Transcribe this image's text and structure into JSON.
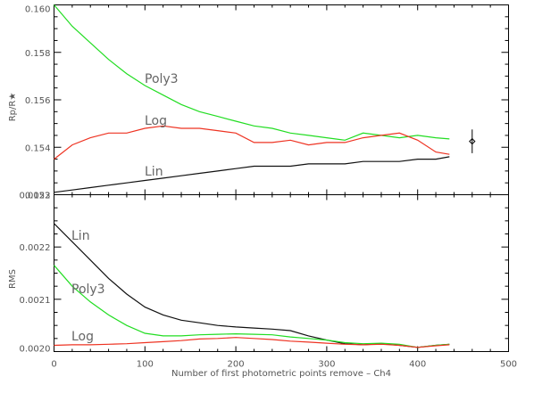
{
  "chart_data": [
    {
      "type": "line",
      "ylabel": "Rp/R★",
      "xlim": [
        0,
        500
      ],
      "ylim": [
        0.152,
        0.16
      ],
      "xticks": [
        0,
        100,
        200,
        300,
        400,
        500
      ],
      "yticks": [
        0.152,
        0.154,
        0.156,
        0.158,
        0.16
      ],
      "ytick_labels": [
        "0.152",
        "0.154",
        "0.156",
        "0.158",
        "0.160"
      ],
      "grid": false,
      "x": [
        0,
        20,
        40,
        60,
        80,
        100,
        120,
        140,
        160,
        180,
        200,
        220,
        240,
        260,
        280,
        300,
        320,
        340,
        360,
        380,
        400,
        420,
        435
      ],
      "series": [
        {
          "name": "Poly3",
          "color": "#22dd22",
          "values": [
            0.16,
            0.1591,
            0.1584,
            0.1577,
            0.1571,
            0.1566,
            0.1562,
            0.1558,
            0.1555,
            0.1553,
            0.1551,
            0.1549,
            0.1548,
            0.1546,
            0.1545,
            0.1544,
            0.1543,
            0.1546,
            0.1545,
            0.1544,
            0.1545,
            0.1544,
            0.15435
          ]
        },
        {
          "name": "Log",
          "color": "#ee3322",
          "values": [
            0.1535,
            0.1541,
            0.1544,
            0.1546,
            0.1546,
            0.1548,
            0.1549,
            0.1548,
            0.1548,
            0.1547,
            0.1546,
            0.1542,
            0.1542,
            0.1543,
            0.1541,
            0.1542,
            0.1542,
            0.1544,
            0.1545,
            0.1546,
            0.1543,
            0.1538,
            0.1537
          ]
        },
        {
          "name": "Lin",
          "color": "#111111",
          "values": [
            0.1521,
            0.1522,
            0.1523,
            0.1524,
            0.1525,
            0.1526,
            0.1527,
            0.1528,
            0.1529,
            0.153,
            0.1531,
            0.1532,
            0.1532,
            0.1532,
            0.1533,
            0.1533,
            0.1533,
            0.1534,
            0.1534,
            0.1534,
            0.1535,
            0.1535,
            0.1536
          ]
        }
      ],
      "reference_point": {
        "x": 460,
        "y": 0.15425,
        "y_err": 0.0005
      }
    },
    {
      "type": "line",
      "xlabel": "Number of first photometric points remove – Ch4",
      "ylabel": "RMS",
      "xlim": [
        0,
        500
      ],
      "ylim": [
        0.002,
        0.0023
      ],
      "xticks": [
        0,
        100,
        200,
        300,
        400,
        500
      ],
      "xtick_labels": [
        "0",
        "100",
        "200",
        "300",
        "400",
        "500"
      ],
      "yticks": [
        0.002,
        0.0021,
        0.0022,
        0.0023
      ],
      "ytick_labels": [
        "0.0020",
        "0.0021",
        "0.0022",
        "0.0023"
      ],
      "grid": false,
      "x": [
        0,
        20,
        40,
        60,
        80,
        100,
        120,
        140,
        160,
        180,
        200,
        220,
        240,
        260,
        280,
        300,
        320,
        340,
        360,
        380,
        400,
        420,
        435
      ],
      "series": [
        {
          "name": "Lin",
          "color": "#111111",
          "values": [
            0.002245,
            0.00221,
            0.002175,
            0.00214,
            0.00211,
            0.002085,
            0.00207,
            0.00206,
            0.002055,
            0.00205,
            0.002047,
            0.002045,
            0.002043,
            0.00204,
            0.00203,
            0.002022,
            0.002015,
            0.002013,
            0.002015,
            0.002012,
            0.002008,
            0.002012,
            0.002014
          ]
        },
        {
          "name": "Poly3",
          "color": "#22dd22",
          "values": [
            0.002165,
            0.002125,
            0.002095,
            0.00207,
            0.00205,
            0.002035,
            0.00203,
            0.00203,
            0.002032,
            0.002033,
            0.002034,
            0.002033,
            0.002032,
            0.002028,
            0.002025,
            0.002022,
            0.002017,
            0.002015,
            0.002016,
            0.002014,
            0.002008,
            0.002012,
            0.002014
          ]
        },
        {
          "name": "Log",
          "color": "#ee3322",
          "values": [
            0.002012,
            0.002013,
            0.002013,
            0.002014,
            0.002015,
            0.002017,
            0.002019,
            0.002021,
            0.002024,
            0.002025,
            0.002027,
            0.002025,
            0.002023,
            0.00202,
            0.002018,
            0.002016,
            0.002014,
            0.002013,
            0.002014,
            0.002012,
            0.002008,
            0.002011,
            0.002013
          ]
        }
      ]
    }
  ]
}
